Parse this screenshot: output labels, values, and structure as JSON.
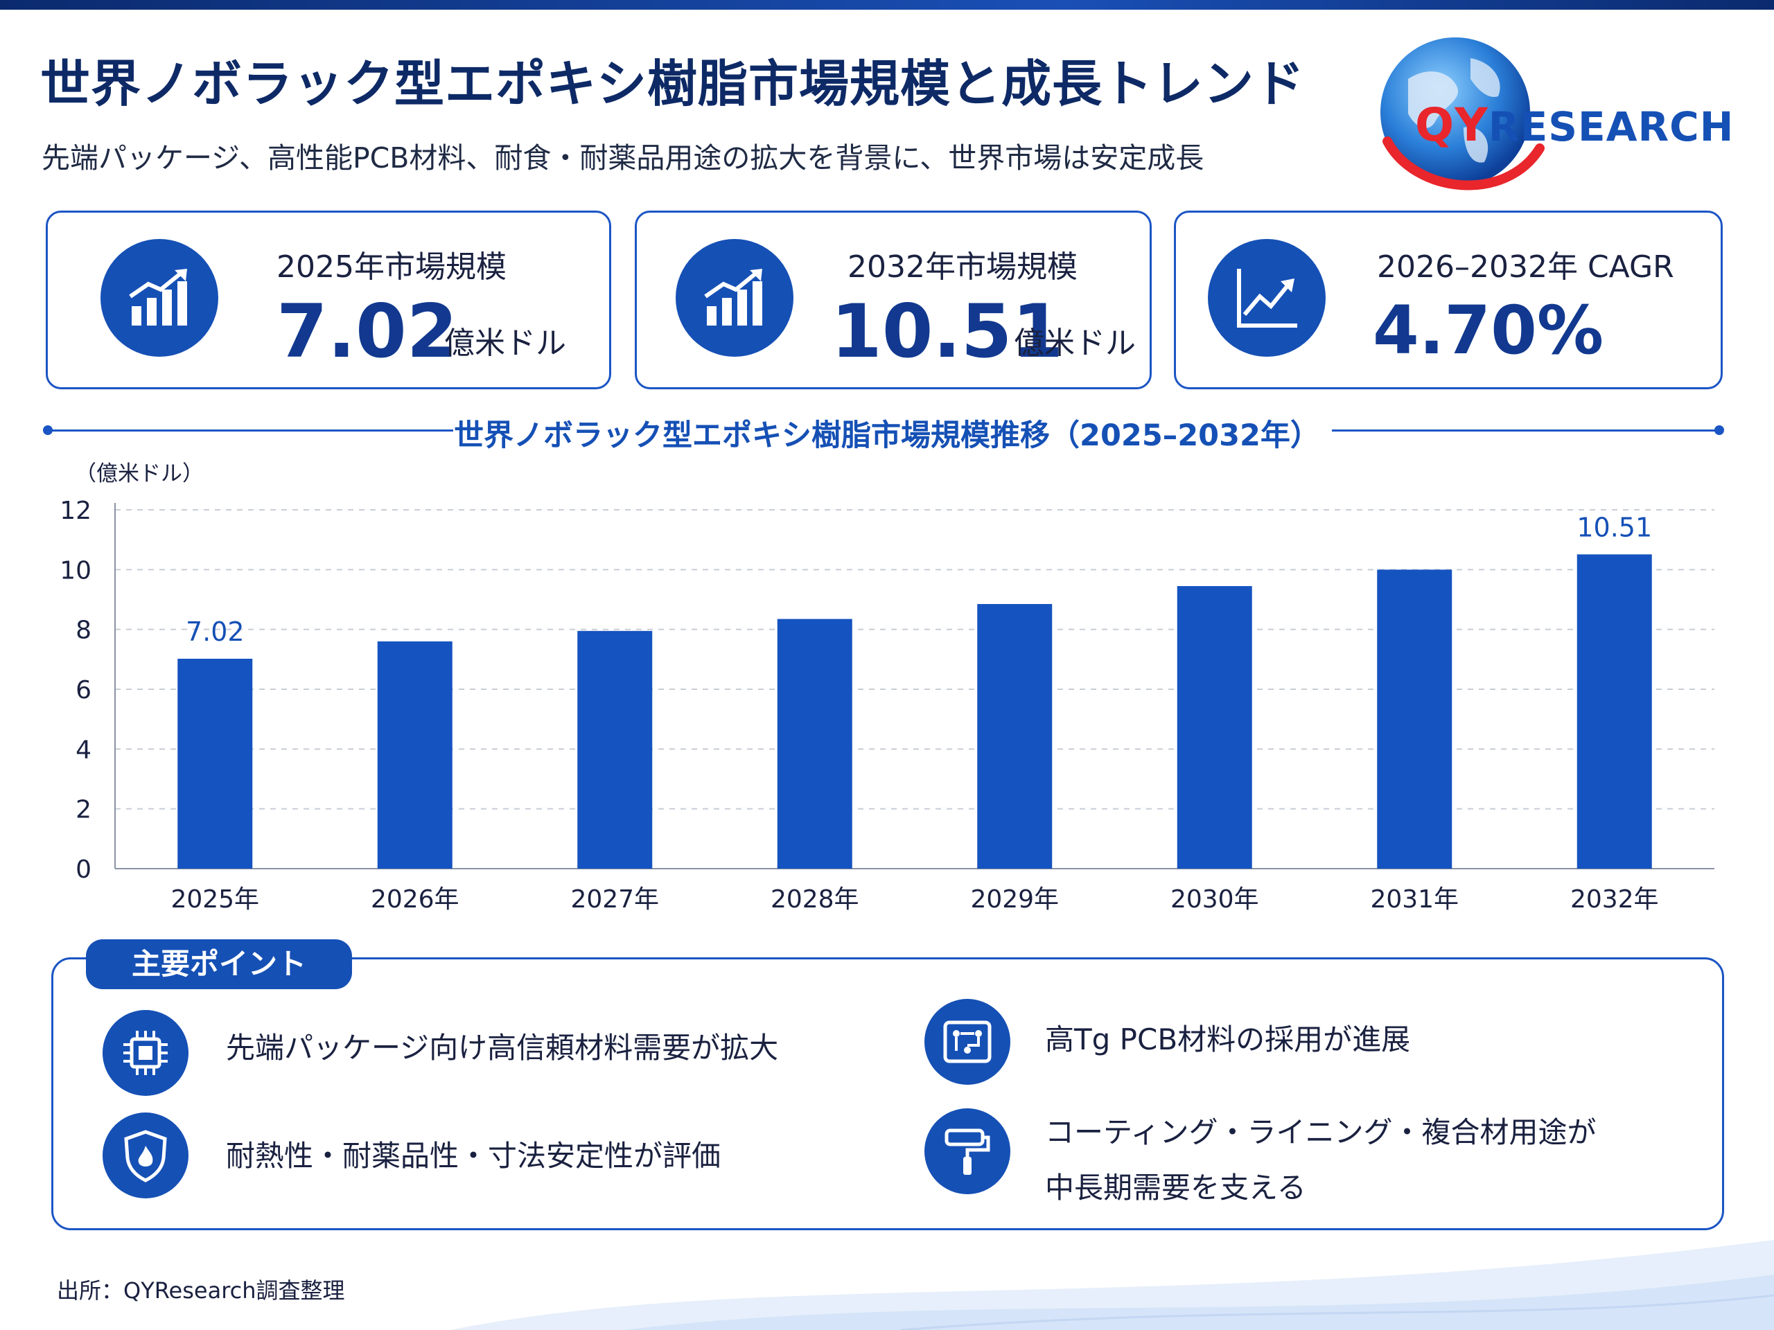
{
  "header": {
    "title": "世界ノボラック型エポキシ樹脂市場規模と成長トレンド",
    "subtitle": "先端パッケージ、高性能PCB材料、耐食・耐薬品用途の拡大を背景に、世界市場は安定成長",
    "logo_text_red": "QY",
    "logo_text_blue": "RESEARCH"
  },
  "kpis": [
    {
      "label": "2025年市場規模",
      "value": "7.02",
      "unit": "億米ドル",
      "icon": "bar-growth-icon"
    },
    {
      "label": "2032年市場規模",
      "value": "10.51",
      "unit": "億米ドル",
      "icon": "bar-growth-icon"
    },
    {
      "label": "2026–2032年 CAGR",
      "value": "4.70%",
      "unit": "",
      "icon": "line-trend-icon"
    }
  ],
  "chart_data": {
    "type": "bar",
    "title": "世界ノボラック型エポキシ樹脂市場規模推移（2025–2032年）",
    "ylabel": "（億米ドル）",
    "xlabel": "",
    "categories": [
      "2025年",
      "2026年",
      "2027年",
      "2028年",
      "2029年",
      "2030年",
      "2031年",
      "2032年"
    ],
    "values": [
      7.02,
      7.6,
      7.95,
      8.35,
      8.85,
      9.45,
      10.0,
      10.51
    ],
    "data_labels": {
      "0": "7.02",
      "7": "10.51"
    },
    "yticks": [
      "0",
      "2",
      "4",
      "6",
      "8",
      "10",
      "12"
    ],
    "ylim": [
      0,
      12
    ],
    "grid": true,
    "bar_color": "#1553c0"
  },
  "points": {
    "heading": "主要ポイント",
    "items": [
      {
        "icon": "chip-icon",
        "lines": [
          "先端パッケージ向け高信頼材料需要が拡大"
        ]
      },
      {
        "icon": "circuit-board-icon",
        "lines": [
          "高Tg PCB材料の採用が進展"
        ]
      },
      {
        "icon": "shield-fire-icon",
        "lines": [
          "耐熱性・耐薬品性・寸法安定性が評価"
        ]
      },
      {
        "icon": "paint-roller-icon",
        "lines": [
          "コーティング・ライニング・複合材用途が",
          "中長期需要を支える"
        ]
      }
    ]
  },
  "footer": {
    "source": "出所：QYResearch調査整理"
  },
  "colors": {
    "primary": "#1550b5",
    "title": "#0e2a66",
    "accent_red": "#e8262c"
  }
}
